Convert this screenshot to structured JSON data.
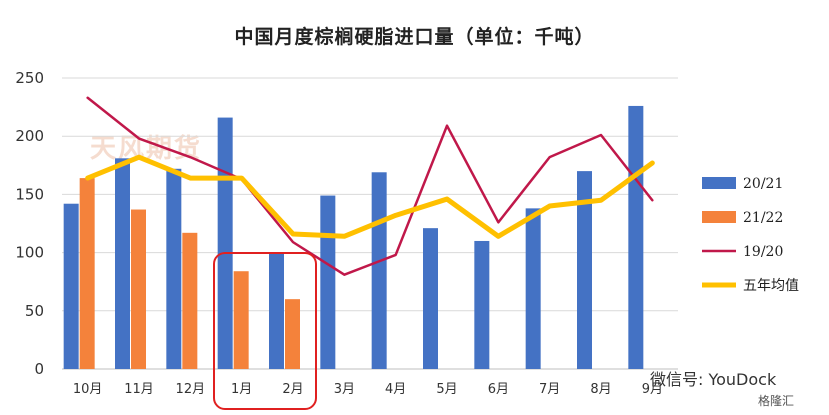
{
  "chart_data": {
    "type": "bar",
    "title": "中国月度棕榈硬脂进口量（单位：千吨）",
    "categories": [
      "10月",
      "11月",
      "12月",
      "1月",
      "2月",
      "3月",
      "4月",
      "5月",
      "6月",
      "7月",
      "8月",
      "9月"
    ],
    "ylim": [
      0,
      250
    ],
    "yticks": [
      0,
      50,
      100,
      150,
      200,
      250
    ],
    "grid": true,
    "legend_position": "right",
    "series": [
      {
        "name": "20/21",
        "kind": "bar",
        "color": "#4472c4",
        "values": [
          142,
          181,
          172,
          216,
          100,
          149,
          169,
          121,
          110,
          138,
          170,
          226
        ]
      },
      {
        "name": "21/22",
        "kind": "bar",
        "color": "#f4823b",
        "values": [
          164,
          137,
          117,
          84,
          60,
          null,
          null,
          null,
          null,
          null,
          null,
          null
        ]
      },
      {
        "name": "19/20",
        "kind": "line",
        "color": "#c0184a",
        "values": [
          233,
          198,
          182,
          163,
          109,
          81,
          98,
          209,
          126,
          182,
          201,
          145
        ]
      },
      {
        "name": "五年均值",
        "kind": "line",
        "color": "#ffc000",
        "values": [
          164,
          182,
          164,
          164,
          116,
          114,
          132,
          146,
          114,
          140,
          145,
          177
        ]
      }
    ]
  },
  "watermark": "微信号: YouDock",
  "brand": "格隆汇",
  "background_logo": "天风期货"
}
